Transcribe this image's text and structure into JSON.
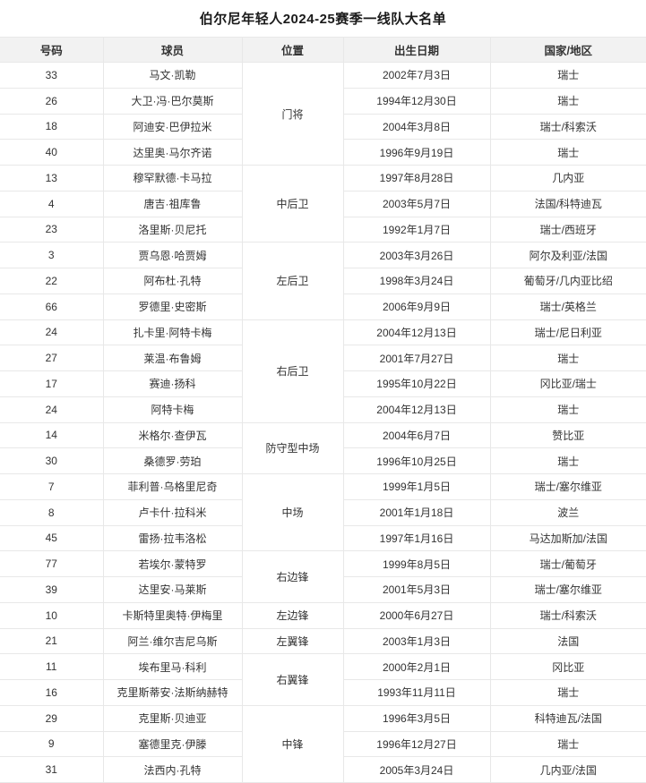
{
  "title": "伯尔尼年轻人2024-25赛季一线队大名单",
  "colors": {
    "header_bg": "#f2f2f2",
    "border": "#e8e8e8",
    "text": "#333333"
  },
  "table": {
    "headers": [
      "号码",
      "球员",
      "位置",
      "出生日期",
      "国家/地区"
    ],
    "groups": [
      {
        "position": "门将",
        "players": [
          {
            "number": "33",
            "name": "马文·凯勒",
            "birth": "2002年7月3日",
            "country": "瑞士"
          },
          {
            "number": "26",
            "name": "大卫·冯·巴尔莫斯",
            "birth": "1994年12月30日",
            "country": "瑞士"
          },
          {
            "number": "18",
            "name": "阿迪安·巴伊拉米",
            "birth": "2004年3月8日",
            "country": "瑞士/科索沃"
          },
          {
            "number": "40",
            "name": "达里奥·马尔齐诺",
            "birth": "1996年9月19日",
            "country": "瑞士"
          }
        ]
      },
      {
        "position": "中后卫",
        "players": [
          {
            "number": "13",
            "name": "穆罕默德·卡马拉",
            "birth": "1997年8月28日",
            "country": "几内亚"
          },
          {
            "number": "4",
            "name": "唐吉·祖库鲁",
            "birth": "2003年5月7日",
            "country": "法国/科特迪瓦"
          },
          {
            "number": "23",
            "name": "洛里斯·贝尼托",
            "birth": "1992年1月7日",
            "country": "瑞士/西班牙"
          }
        ]
      },
      {
        "position": "左后卫",
        "players": [
          {
            "number": "3",
            "name": "贾乌恩·哈贾姆",
            "birth": "2003年3月26日",
            "country": "阿尔及利亚/法国"
          },
          {
            "number": "22",
            "name": "阿布杜·孔特",
            "birth": "1998年3月24日",
            "country": "葡萄牙/几内亚比绍"
          },
          {
            "number": "66",
            "name": "罗德里·史密斯",
            "birth": "2006年9月9日",
            "country": "瑞士/英格兰"
          }
        ]
      },
      {
        "position": "右后卫",
        "players": [
          {
            "number": "24",
            "name": "扎卡里·阿特卡梅",
            "birth": "2004年12月13日",
            "country": "瑞士/尼日利亚"
          },
          {
            "number": "27",
            "name": "莱温·布鲁姆",
            "birth": "2001年7月27日",
            "country": "瑞士"
          },
          {
            "number": "17",
            "name": "赛迪·扬科",
            "birth": "1995年10月22日",
            "country": "冈比亚/瑞士"
          },
          {
            "number": "24",
            "name": "阿特卡梅",
            "birth": "2004年12月13日",
            "country": "瑞士"
          }
        ]
      },
      {
        "position": "防守型中场",
        "players": [
          {
            "number": "14",
            "name": "米格尔·查伊瓦",
            "birth": "2004年6月7日",
            "country": "赞比亚"
          },
          {
            "number": "30",
            "name": "桑德罗·劳珀",
            "birth": "1996年10月25日",
            "country": "瑞士"
          }
        ]
      },
      {
        "position": "中场",
        "players": [
          {
            "number": "7",
            "name": "菲利普·乌格里尼奇",
            "birth": "1999年1月5日",
            "country": "瑞士/塞尔维亚"
          },
          {
            "number": "8",
            "name": "卢卡什·拉科米",
            "birth": "2001年1月18日",
            "country": "波兰"
          },
          {
            "number": "45",
            "name": "雷扬·拉韦洛松",
            "birth": "1997年1月16日",
            "country": "马达加斯加/法国"
          }
        ]
      },
      {
        "position": "右边锋",
        "players": [
          {
            "number": "77",
            "name": "若埃尔·蒙特罗",
            "birth": "1999年8月5日",
            "country": "瑞士/葡萄牙"
          },
          {
            "number": "39",
            "name": "达里安·马莱斯",
            "birth": "2001年5月3日",
            "country": "瑞士/塞尔维亚"
          }
        ]
      },
      {
        "position": "左边锋",
        "players": [
          {
            "number": "10",
            "name": "卡斯特里奥特·伊梅里",
            "birth": "2000年6月27日",
            "country": "瑞士/科索沃"
          }
        ]
      },
      {
        "position": "左翼锋",
        "players": [
          {
            "number": "21",
            "name": "阿兰·维尔吉尼乌斯",
            "birth": "2003年1月3日",
            "country": "法国"
          }
        ]
      },
      {
        "position": "右翼锋",
        "players": [
          {
            "number": "11",
            "name": "埃布里马·科利",
            "birth": "2000年2月1日",
            "country": "冈比亚"
          },
          {
            "number": "16",
            "name": "克里斯蒂安·法斯纳赫特",
            "birth": "1993年11月11日",
            "country": "瑞士"
          }
        ]
      },
      {
        "position": "中锋",
        "players": [
          {
            "number": "29",
            "name": "克里斯·贝迪亚",
            "birth": "1996年3月5日",
            "country": "科特迪瓦/法国"
          },
          {
            "number": "9",
            "name": "塞德里克·伊滕",
            "birth": "1996年12月27日",
            "country": "瑞士"
          },
          {
            "number": "31",
            "name": "法西内·孔特",
            "birth": "2005年3月24日",
            "country": "几内亚/法国"
          }
        ]
      }
    ]
  }
}
